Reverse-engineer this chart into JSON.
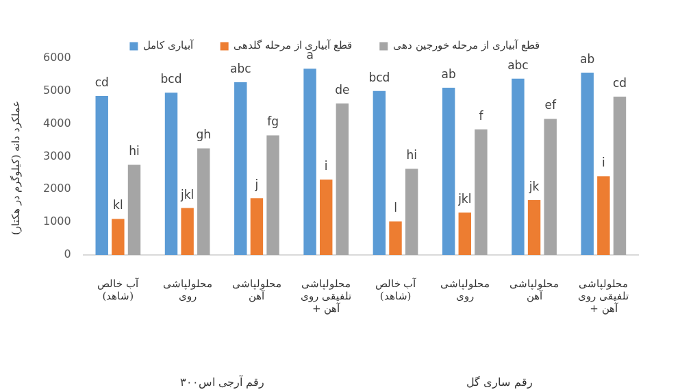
{
  "chart_data": {
    "type": "bar",
    "ylabel": "عملکرد دانه (کیلوگرم در هکتار)",
    "categories": [
      "آب خالص\n(شاهد)",
      "محلولپاشی\nروی",
      "محلولپاشی\nآهن",
      "محلولپاشی\nتلفیقی روی\n+ آهن",
      "آب خالص\n(شاهد)",
      "محلولپاشی\nروی",
      "محلولپاشی\nآهن",
      "محلولپاشی\nتلفیقی روی\n+ آهن"
    ],
    "series": [
      {
        "name": "آبیاری کامل",
        "color": "#5b9bd5",
        "values": [
          4850,
          4950,
          5270,
          5680,
          5000,
          5100,
          5380,
          5560
        ],
        "value_labels": [
          "cd",
          "bcd",
          "abc",
          "a",
          "bcd",
          "ab",
          "abc",
          "ab"
        ]
      },
      {
        "name": "قطع آبیاری از مرحله گلدهی",
        "color": "#ed7d31",
        "values": [
          1100,
          1430,
          1730,
          2300,
          1020,
          1290,
          1670,
          2400
        ],
        "value_labels": [
          "kl",
          "jkl",
          "j",
          "i",
          "l",
          "jkl",
          "jk",
          "i"
        ]
      },
      {
        "name": "قطع آبیاری از مرحله خورجین دهی",
        "color": "#a5a5a5",
        "values": [
          2750,
          3250,
          3650,
          4620,
          2630,
          3830,
          4150,
          4830
        ],
        "value_labels": [
          "hi",
          "gh",
          "fg",
          "de",
          "hi",
          "f",
          "ef",
          "cd"
        ]
      }
    ],
    "ylim": [
      0,
      6000
    ],
    "yticks": [
      0,
      1000,
      2000,
      3000,
      4000,
      5000,
      6000
    ],
    "grid": false,
    "legend": "top",
    "annotations": [
      "رقم آرجی اس۳۰۰",
      "رقم ساری گل"
    ]
  }
}
